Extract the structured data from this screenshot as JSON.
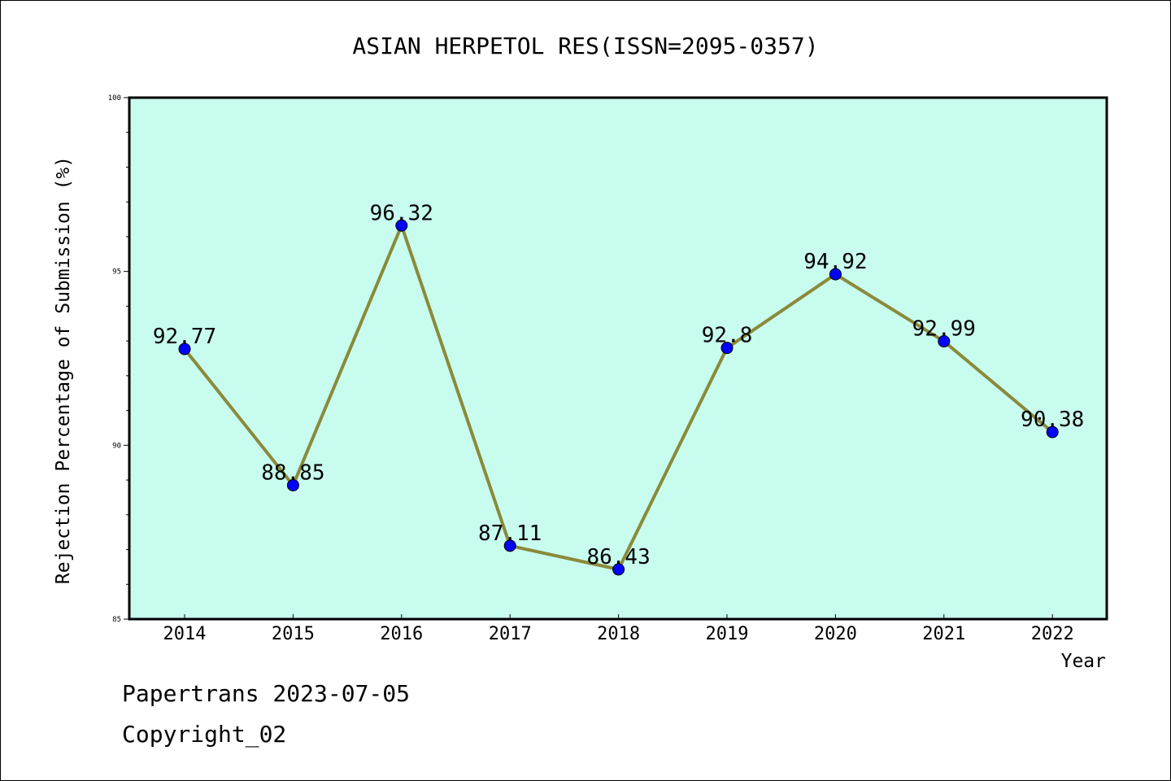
{
  "chart_data": {
    "type": "line",
    "title": "ASIAN HERPETOL RES(ISSN=2095-0357)",
    "xlabel": "Year",
    "ylabel": "Rejection Percentage of Submission (%)",
    "categories": [
      "2014",
      "2015",
      "2016",
      "2017",
      "2018",
      "2019",
      "2020",
      "2021",
      "2022"
    ],
    "values": [
      92.77,
      88.85,
      96.32,
      87.11,
      86.43,
      92.8,
      94.92,
      92.99,
      90.38
    ],
    "value_labels": [
      "92.77",
      "88.85",
      "96.32",
      "87.11",
      "86.43",
      "92.8",
      "94.92",
      "92.99",
      "90.38"
    ],
    "ylim": [
      85,
      100
    ],
    "yticks": [
      85,
      90,
      95,
      100
    ],
    "grid": false,
    "colors": {
      "plot_background": "#c8fcee",
      "line": "#8a8a3a",
      "marker": "#0000ff"
    }
  },
  "footer": {
    "line1": "Papertrans 2023-07-05",
    "line2": "Copyright_02"
  }
}
